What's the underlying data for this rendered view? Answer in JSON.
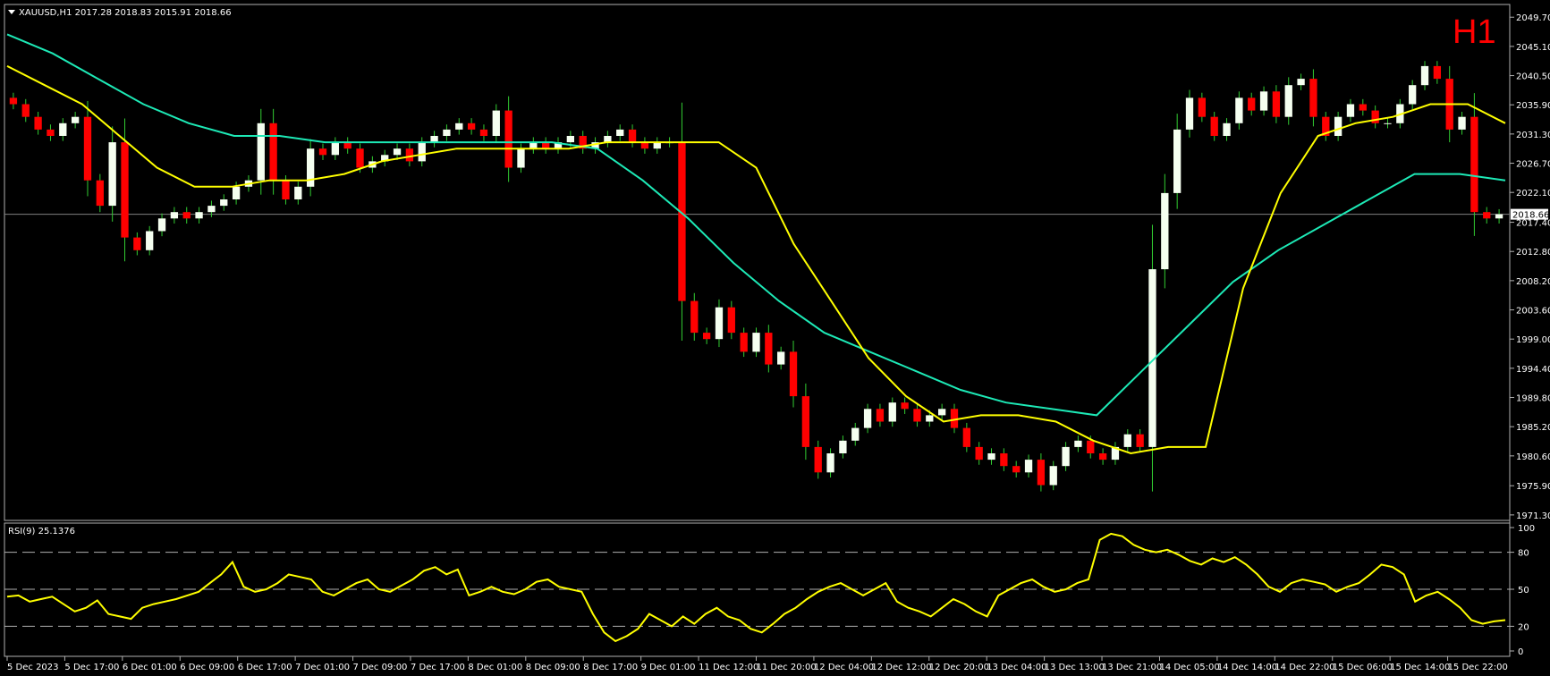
{
  "window": {
    "symbol_header": "XAUUSD,H1  2017.28 2018.83 2015.91 2018.66",
    "timeframe_badge": "H1",
    "current_price_label": "2018.66"
  },
  "colors": {
    "background": "#000000",
    "frame": "#b0b0b0",
    "bull_candle": "#f5fff0",
    "bear_candle": "#ff0000",
    "wick": "#32cd32",
    "ma_fast": "#ffff00",
    "ma_slow": "#1de9b6",
    "rsi": "#ffff00",
    "price_line": "#808080"
  },
  "chart_data": [
    {
      "type": "candlestick",
      "symbol": "XAUUSD",
      "timeframe": "H1",
      "ohlc_current": {
        "open": 2017.28,
        "high": 2018.83,
        "low": 2015.91,
        "close": 2018.66
      },
      "y_ticks": [
        2049.7,
        2045.1,
        2040.5,
        2035.9,
        2031.3,
        2026.7,
        2022.1,
        2017.4,
        2012.8,
        2008.2,
        2003.6,
        1999.0,
        1994.4,
        1989.8,
        1985.2,
        1980.6,
        1975.9,
        1971.3
      ],
      "ylim": [
        1971.0,
        2051.0
      ],
      "x_tick_labels": [
        "5 Dec 2023",
        "5 Dec 17:00",
        "6 Dec 01:00",
        "6 Dec 09:00",
        "6 Dec 17:00",
        "7 Dec 01:00",
        "7 Dec 09:00",
        "7 Dec 17:00",
        "8 Dec 01:00",
        "8 Dec 09:00",
        "8 Dec 17:00",
        "9 Dec 01:00",
        "11 Dec 12:00",
        "11 Dec 20:00",
        "12 Dec 04:00",
        "12 Dec 12:00",
        "12 Dec 20:00",
        "13 Dec 04:00",
        "13 Dec 13:00",
        "13 Dec 21:00",
        "14 Dec 05:00",
        "14 Dec 14:00",
        "14 Dec 22:00",
        "15 Dec 06:00",
        "15 Dec 14:00",
        "15 Dec 22:00"
      ],
      "close_path": [
        2036,
        2034,
        2032,
        2031,
        2033,
        2034,
        2024,
        2020,
        2030,
        2015,
        2013,
        2016,
        2018,
        2019,
        2018,
        2019,
        2020,
        2021,
        2023,
        2024,
        2033,
        2024,
        2021,
        2023,
        2029,
        2028,
        2030,
        2029,
        2026,
        2027,
        2028,
        2029,
        2027,
        2030,
        2031,
        2032,
        2033,
        2032,
        2031,
        2035,
        2026,
        2029,
        2030,
        2029,
        2030,
        2031,
        2029,
        2030,
        2031,
        2032,
        2030,
        2029,
        2030,
        2030,
        2005,
        2000,
        1999,
        2004,
        2000,
        1997,
        2000,
        1995,
        1997,
        1990,
        1982,
        1978,
        1981,
        1983,
        1985,
        1988,
        1986,
        1989,
        1988,
        1986,
        1987,
        1988,
        1985,
        1982,
        1980,
        1981,
        1979,
        1978,
        1980,
        1976,
        1979,
        1982,
        1983,
        1981,
        1980,
        1982,
        1984,
        1982,
        2010,
        2022,
        2032,
        2037,
        2034,
        2031,
        2033,
        2037,
        2035,
        2038,
        2034,
        2039,
        2040,
        2034,
        2031,
        2034,
        2036,
        2035,
        2033,
        2033,
        2036,
        2039,
        2042,
        2040,
        2032,
        2034,
        2019,
        2018,
        2018.66
      ],
      "ma_fast_name": "",
      "ma_slow_name": "",
      "ma_fast": [
        2042,
        2039,
        2036,
        2031,
        2026,
        2023,
        2023,
        2024,
        2024,
        2025,
        2027,
        2028,
        2029,
        2029,
        2029,
        2029,
        2030,
        2030,
        2030,
        2030,
        2026,
        2014,
        2005,
        1996,
        1990,
        1986,
        1987,
        1987,
        1986,
        1983,
        1981,
        1982,
        1982,
        2007,
        2022,
        2031,
        2033,
        2034,
        2036,
        2036,
        2033
      ],
      "ma_slow": [
        2047,
        2044,
        2040,
        2036,
        2033,
        2031,
        2031,
        2030,
        2030,
        2030,
        2030,
        2030,
        2030,
        2029,
        2024,
        2018,
        2011,
        2005,
        2000,
        1997,
        1994,
        1991,
        1989,
        1988,
        1987,
        1994,
        2001,
        2008,
        2013,
        2017,
        2021,
        2025,
        2025,
        2024
      ]
    },
    {
      "type": "line",
      "indicator_label": "RSI(9) 25.1376",
      "period": 9,
      "last_value": 25.1376,
      "levels": [
        80,
        50,
        20
      ],
      "y_ticks": [
        100,
        80,
        50,
        20,
        0
      ],
      "ylim": [
        0,
        100
      ],
      "values": [
        44,
        45,
        40,
        42,
        44,
        38,
        32,
        35,
        41,
        30,
        28,
        26,
        35,
        38,
        40,
        42,
        45,
        48,
        55,
        62,
        72,
        52,
        48,
        50,
        55,
        62,
        60,
        58,
        48,
        45,
        50,
        55,
        58,
        50,
        48,
        53,
        58,
        65,
        68,
        62,
        66,
        45,
        48,
        52,
        48,
        46,
        50,
        56,
        58,
        52,
        50,
        48,
        30,
        15,
        8,
        12,
        18,
        30,
        25,
        20,
        28,
        22,
        30,
        35,
        28,
        25,
        18,
        15,
        22,
        30,
        35,
        42,
        48,
        52,
        55,
        50,
        45,
        50,
        55,
        40,
        35,
        32,
        28,
        35,
        42,
        38,
        32,
        28,
        45,
        50,
        55,
        58,
        52,
        48,
        50,
        55,
        58,
        90,
        95,
        93,
        86,
        82,
        80,
        82,
        78,
        73,
        70,
        75,
        72,
        76,
        70,
        62,
        52,
        48,
        55,
        58,
        56,
        54,
        48,
        52,
        55,
        62,
        70,
        68,
        62,
        40,
        45,
        48,
        42,
        35,
        25,
        22,
        24,
        25
      ]
    }
  ]
}
